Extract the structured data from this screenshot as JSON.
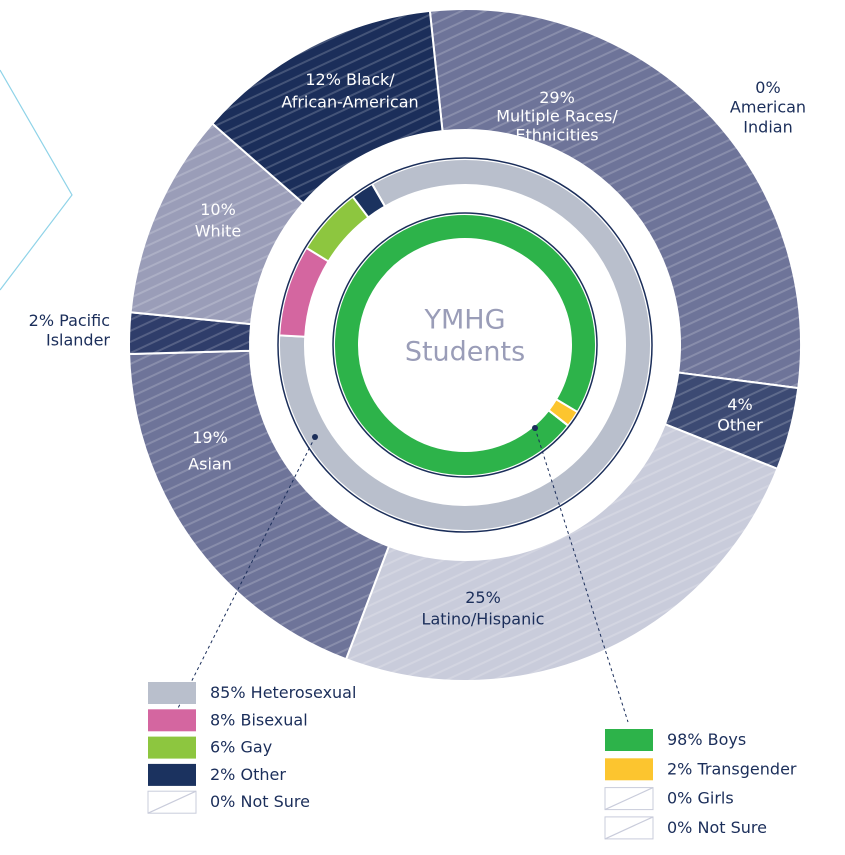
{
  "chart_data": {
    "type": "donut",
    "center_label": [
      "YMHG",
      "Students"
    ],
    "rings": [
      {
        "categories": [
          [
            "Multiple Races/",
            "Ethnicities"
          ],
          [
            "American",
            "Indian"
          ],
          [
            "Other"
          ],
          [
            "Latino/Hispanic"
          ],
          [
            "Asian"
          ],
          [
            "Pacific",
            "Islander"
          ],
          [
            "White"
          ],
          [
            "Black/",
            "African-American"
          ]
        ],
        "values": [
          29,
          0,
          4,
          25,
          19,
          2,
          10,
          12
        ],
        "value_labels": [
          "29%",
          "0%",
          "4%",
          "25%",
          "19%",
          "2%",
          "10%",
          "12%"
        ],
        "colors": [
          "#6e7499",
          "#6e7499",
          "#3c4a73",
          "#c9ccdb",
          "#6e7499",
          "#2f3d6a",
          "#9a9db8",
          "#1b2e5a"
        ]
      },
      {
        "categories": [
          "Heterosexual",
          "Bisexual",
          "Gay",
          "Other",
          "Not Sure"
        ],
        "values": [
          85,
          8,
          6,
          2,
          0
        ],
        "value_labels": [
          "85%",
          "8%",
          "6%",
          "2%",
          "0%"
        ],
        "colors": [
          "#b9bfcc",
          "#d466a0",
          "#8dc63f",
          "#1b325f",
          "#ffffff"
        ]
      },
      {
        "categories": [
          "Boys",
          "Transgender",
          "Girls",
          "Not Sure"
        ],
        "values": [
          98,
          2,
          0,
          0
        ],
        "value_labels": [
          "98%",
          "2%",
          "0%",
          "0%"
        ],
        "colors": [
          "#2db34a",
          "#fcc52f",
          "#ffffff",
          "#ffffff"
        ]
      }
    ]
  }
}
